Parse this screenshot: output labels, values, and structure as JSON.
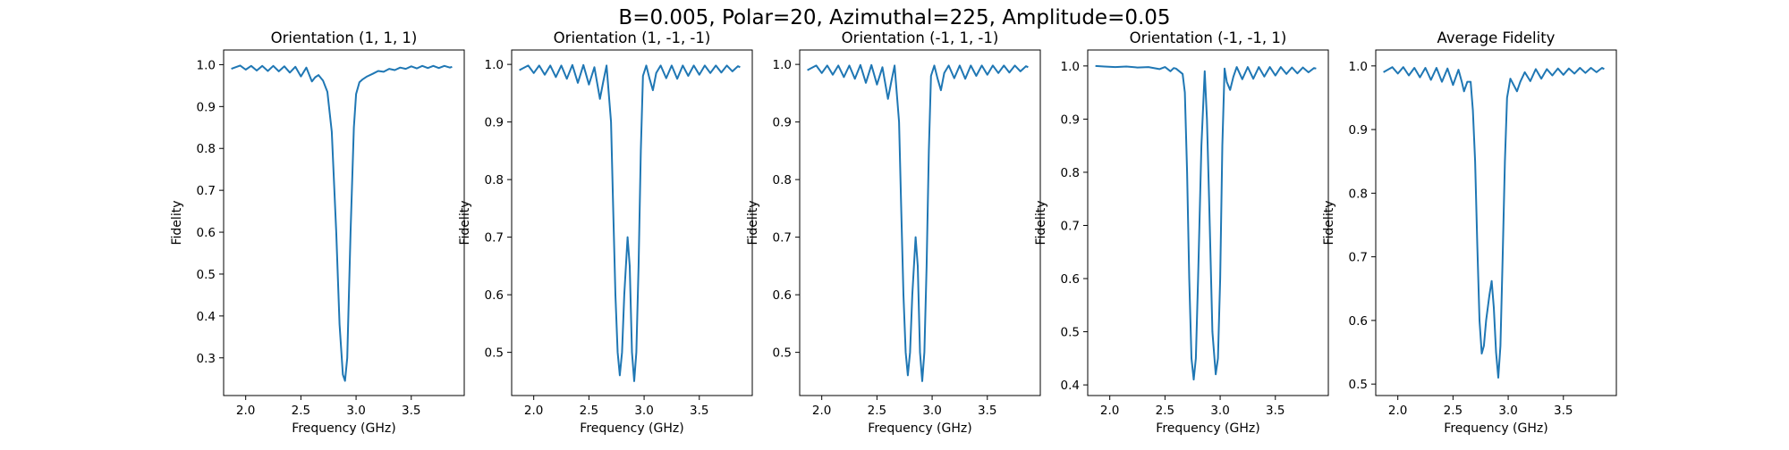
{
  "figure": {
    "suptitle": "B=0.005, Polar=20, Azimuthal=225, Amplitude=0.05",
    "line_color": "#1f77b4"
  },
  "chart_data": [
    {
      "type": "line",
      "title": "Orientation (1, 1, 1)",
      "xlabel": "Frequency (GHz)",
      "ylabel": "Fidelity",
      "xlim": [
        1.8,
        3.98
      ],
      "ylim": [
        0.21,
        1.035
      ],
      "xticks": [
        "2.0",
        "2.5",
        "3.0",
        "3.5"
      ],
      "yticks": [
        "0.3",
        "0.4",
        "0.5",
        "0.6",
        "0.7",
        "0.8",
        "0.9",
        "1.0"
      ],
      "series": [
        {
          "x": [
            1.87,
            1.9,
            1.95,
            2.0,
            2.05,
            2.1,
            2.15,
            2.2,
            2.25,
            2.3,
            2.35,
            2.4,
            2.45,
            2.5,
            2.55,
            2.6,
            2.63,
            2.66,
            2.7,
            2.74,
            2.78,
            2.82,
            2.85,
            2.88,
            2.9,
            2.92,
            2.95,
            2.98,
            3.0,
            3.03,
            3.06,
            3.1,
            3.15,
            3.2,
            3.25,
            3.3,
            3.35,
            3.4,
            3.45,
            3.5,
            3.55,
            3.6,
            3.65,
            3.7,
            3.75,
            3.8,
            3.85,
            3.87
          ],
          "y": [
            0.99,
            0.993,
            0.998,
            0.988,
            0.997,
            0.986,
            0.997,
            0.985,
            0.997,
            0.984,
            0.996,
            0.981,
            0.995,
            0.972,
            0.993,
            0.96,
            0.97,
            0.975,
            0.962,
            0.935,
            0.84,
            0.6,
            0.38,
            0.26,
            0.245,
            0.3,
            0.6,
            0.85,
            0.93,
            0.958,
            0.965,
            0.972,
            0.978,
            0.985,
            0.983,
            0.99,
            0.987,
            0.993,
            0.99,
            0.996,
            0.991,
            0.997,
            0.992,
            0.997,
            0.992,
            0.997,
            0.993,
            0.995
          ]
        }
      ]
    },
    {
      "type": "line",
      "title": "Orientation (1, -1, -1)",
      "xlabel": "Frequency (GHz)",
      "ylabel": "Fidelity",
      "xlim": [
        1.8,
        3.98
      ],
      "ylim": [
        0.425,
        1.025
      ],
      "xticks": [
        "2.0",
        "2.5",
        "3.0",
        "3.5"
      ],
      "yticks": [
        "0.5",
        "0.6",
        "0.7",
        "0.8",
        "0.9",
        "1.0"
      ],
      "series": [
        {
          "x": [
            1.87,
            1.9,
            1.95,
            2.0,
            2.05,
            2.1,
            2.15,
            2.2,
            2.25,
            2.3,
            2.35,
            2.4,
            2.45,
            2.5,
            2.55,
            2.6,
            2.63,
            2.66,
            2.7,
            2.72,
            2.74,
            2.76,
            2.78,
            2.8,
            2.82,
            2.85,
            2.87,
            2.89,
            2.91,
            2.93,
            2.95,
            2.97,
            2.99,
            3.02,
            3.05,
            3.08,
            3.11,
            3.15,
            3.2,
            3.25,
            3.3,
            3.35,
            3.4,
            3.45,
            3.5,
            3.55,
            3.6,
            3.65,
            3.7,
            3.75,
            3.8,
            3.85,
            3.87
          ],
          "y": [
            0.99,
            0.993,
            0.998,
            0.985,
            0.998,
            0.982,
            0.998,
            0.978,
            0.998,
            0.975,
            0.999,
            0.968,
            0.999,
            0.965,
            0.995,
            0.94,
            0.97,
            0.998,
            0.9,
            0.75,
            0.6,
            0.5,
            0.46,
            0.5,
            0.6,
            0.7,
            0.65,
            0.5,
            0.45,
            0.5,
            0.65,
            0.85,
            0.98,
            0.998,
            0.975,
            0.955,
            0.985,
            0.998,
            0.976,
            0.998,
            0.975,
            0.998,
            0.98,
            0.998,
            0.982,
            0.998,
            0.985,
            0.998,
            0.986,
            0.998,
            0.988,
            0.997,
            0.995
          ]
        }
      ]
    },
    {
      "type": "line",
      "title": "Orientation (-1, 1, -1)",
      "xlabel": "Frequency (GHz)",
      "ylabel": "Fidelity",
      "xlim": [
        1.8,
        3.98
      ],
      "ylim": [
        0.425,
        1.025
      ],
      "xticks": [
        "2.0",
        "2.5",
        "3.0",
        "3.5"
      ],
      "yticks": [
        "0.5",
        "0.6",
        "0.7",
        "0.8",
        "0.9",
        "1.0"
      ],
      "series": [
        {
          "x": [
            1.87,
            1.9,
            1.95,
            2.0,
            2.05,
            2.1,
            2.15,
            2.2,
            2.25,
            2.3,
            2.35,
            2.4,
            2.45,
            2.5,
            2.55,
            2.6,
            2.63,
            2.66,
            2.7,
            2.72,
            2.74,
            2.76,
            2.78,
            2.8,
            2.82,
            2.85,
            2.87,
            2.89,
            2.91,
            2.93,
            2.95,
            2.97,
            2.99,
            3.02,
            3.05,
            3.08,
            3.11,
            3.15,
            3.2,
            3.25,
            3.3,
            3.35,
            3.4,
            3.45,
            3.5,
            3.55,
            3.6,
            3.65,
            3.7,
            3.75,
            3.8,
            3.85,
            3.87
          ],
          "y": [
            0.99,
            0.993,
            0.998,
            0.985,
            0.998,
            0.982,
            0.998,
            0.978,
            0.998,
            0.975,
            0.999,
            0.968,
            0.999,
            0.965,
            0.995,
            0.94,
            0.97,
            0.998,
            0.9,
            0.75,
            0.6,
            0.5,
            0.46,
            0.5,
            0.6,
            0.7,
            0.65,
            0.5,
            0.45,
            0.5,
            0.65,
            0.85,
            0.98,
            0.998,
            0.975,
            0.955,
            0.985,
            0.998,
            0.976,
            0.998,
            0.975,
            0.998,
            0.98,
            0.998,
            0.982,
            0.998,
            0.985,
            0.998,
            0.986,
            0.998,
            0.988,
            0.997,
            0.995
          ]
        }
      ]
    },
    {
      "type": "line",
      "title": "Orientation (-1, -1, 1)",
      "xlabel": "Frequency (GHz)",
      "ylabel": "Fidelity",
      "xlim": [
        1.8,
        3.98
      ],
      "ylim": [
        0.38,
        1.03
      ],
      "xticks": [
        "2.0",
        "2.5",
        "3.0",
        "3.5"
      ],
      "yticks": [
        "0.4",
        "0.5",
        "0.6",
        "0.7",
        "0.8",
        "0.9",
        "1.0"
      ],
      "series": [
        {
          "x": [
            1.87,
            1.95,
            2.05,
            2.15,
            2.25,
            2.35,
            2.45,
            2.5,
            2.55,
            2.58,
            2.6,
            2.63,
            2.66,
            2.68,
            2.7,
            2.72,
            2.74,
            2.76,
            2.78,
            2.8,
            2.83,
            2.86,
            2.88,
            2.9,
            2.93,
            2.96,
            2.98,
            3.0,
            3.02,
            3.04,
            3.06,
            3.09,
            3.12,
            3.15,
            3.2,
            3.25,
            3.3,
            3.35,
            3.4,
            3.45,
            3.5,
            3.55,
            3.6,
            3.65,
            3.7,
            3.75,
            3.8,
            3.85,
            3.87
          ],
          "y": [
            1.0,
            0.999,
            0.998,
            0.999,
            0.997,
            0.998,
            0.994,
            0.998,
            0.99,
            0.996,
            0.995,
            0.99,
            0.985,
            0.95,
            0.8,
            0.6,
            0.45,
            0.41,
            0.45,
            0.6,
            0.85,
            0.99,
            0.9,
            0.75,
            0.5,
            0.42,
            0.45,
            0.6,
            0.85,
            0.995,
            0.97,
            0.955,
            0.98,
            0.998,
            0.975,
            0.998,
            0.976,
            0.998,
            0.98,
            0.998,
            0.982,
            0.998,
            0.985,
            0.997,
            0.986,
            0.997,
            0.988,
            0.996,
            0.995
          ]
        }
      ]
    },
    {
      "type": "line",
      "title": "Average Fidelity",
      "xlabel": "Frequency (GHz)",
      "ylabel": "Fidelity",
      "xlim": [
        1.8,
        3.98
      ],
      "ylim": [
        0.482,
        1.025
      ],
      "xticks": [
        "2.0",
        "2.5",
        "3.0",
        "3.5"
      ],
      "yticks": [
        "0.5",
        "0.6",
        "0.7",
        "0.8",
        "0.9",
        "1.0"
      ],
      "series": [
        {
          "x": [
            1.87,
            1.9,
            1.95,
            2.0,
            2.05,
            2.1,
            2.15,
            2.2,
            2.25,
            2.3,
            2.35,
            2.4,
            2.45,
            2.5,
            2.55,
            2.58,
            2.6,
            2.63,
            2.66,
            2.68,
            2.7,
            2.72,
            2.74,
            2.76,
            2.78,
            2.8,
            2.83,
            2.85,
            2.87,
            2.89,
            2.91,
            2.93,
            2.95,
            2.97,
            2.99,
            3.02,
            3.05,
            3.08,
            3.11,
            3.15,
            3.2,
            3.25,
            3.3,
            3.35,
            3.4,
            3.45,
            3.5,
            3.55,
            3.6,
            3.65,
            3.7,
            3.75,
            3.8,
            3.85,
            3.87
          ],
          "y": [
            0.99,
            0.993,
            0.998,
            0.988,
            0.998,
            0.985,
            0.997,
            0.982,
            0.997,
            0.978,
            0.997,
            0.975,
            0.996,
            0.97,
            0.994,
            0.975,
            0.96,
            0.975,
            0.975,
            0.93,
            0.85,
            0.72,
            0.6,
            0.548,
            0.56,
            0.6,
            0.64,
            0.662,
            0.62,
            0.55,
            0.51,
            0.56,
            0.7,
            0.85,
            0.95,
            0.98,
            0.97,
            0.96,
            0.975,
            0.99,
            0.976,
            0.995,
            0.98,
            0.995,
            0.985,
            0.996,
            0.986,
            0.996,
            0.988,
            0.997,
            0.989,
            0.997,
            0.99,
            0.997,
            0.995
          ]
        }
      ]
    }
  ]
}
